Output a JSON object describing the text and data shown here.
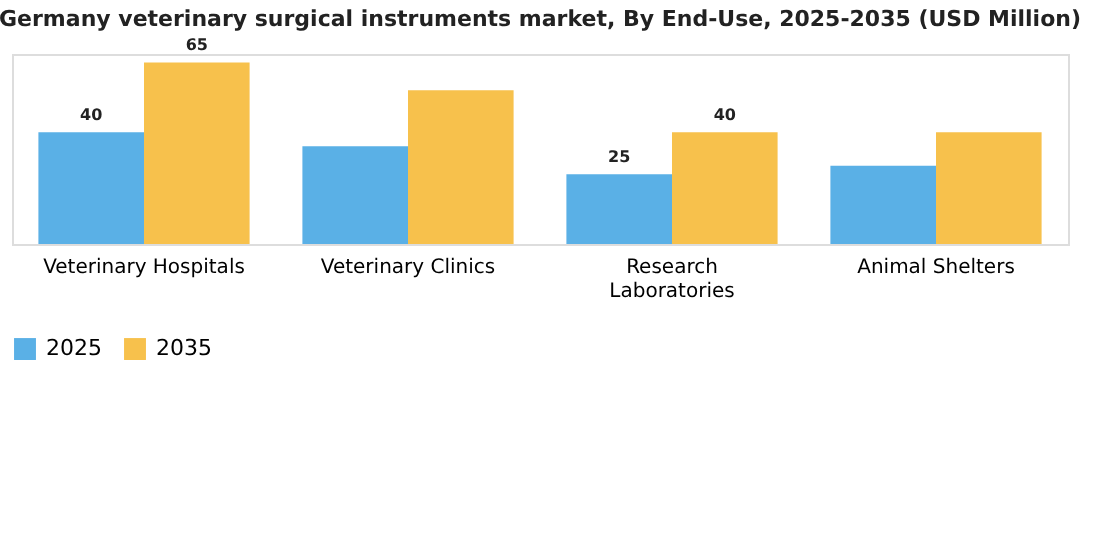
{
  "chart_data": {
    "type": "bar",
    "title": "Germany veterinary surgical instruments market, By End-Use, 2025-2035 (USD Million)",
    "categories": [
      "Veterinary Hospitals",
      "Veterinary Clinics",
      "Research\nLaboratories",
      "Animal Shelters"
    ],
    "series": [
      {
        "name": "2025",
        "color": "#5ab0e6",
        "values": [
          40,
          35,
          25,
          28
        ],
        "value_labels": [
          "40",
          null,
          "25",
          null
        ]
      },
      {
        "name": "2035",
        "color": "#f7c14c",
        "values": [
          65,
          55,
          40,
          40
        ],
        "value_labels": [
          "65",
          null,
          "40",
          null
        ]
      }
    ],
    "ylim": [
      0,
      68
    ],
    "tick_labels": "x",
    "grid": false,
    "legend": "bottom"
  }
}
